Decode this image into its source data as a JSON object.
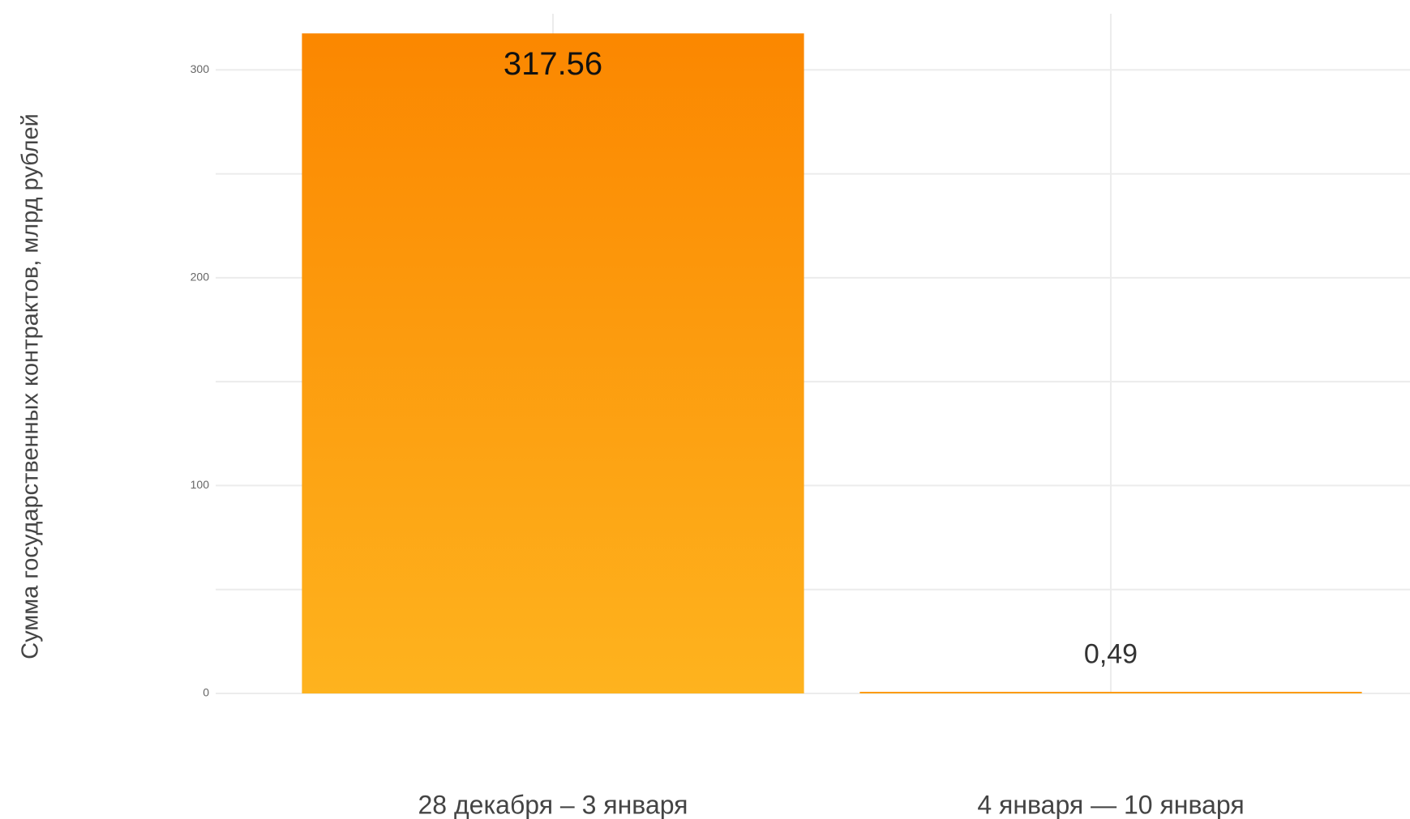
{
  "chart_data": {
    "type": "bar",
    "y_axis_label": "Сумма государственных контрактов, млрд рублей",
    "categories": [
      "28 декабря – 3 января",
      "4 января — 10 января"
    ],
    "values": [
      317.56,
      0.49
    ],
    "value_labels": [
      "317.56",
      "0,49"
    ],
    "gradient": [
      "#fb8700",
      "#feb31e"
    ],
    "ylim": [
      0,
      327
    ],
    "yticks": [
      0,
      100,
      200,
      300
    ],
    "y_minor_ticks": [
      50,
      150,
      250
    ],
    "grid": true
  }
}
